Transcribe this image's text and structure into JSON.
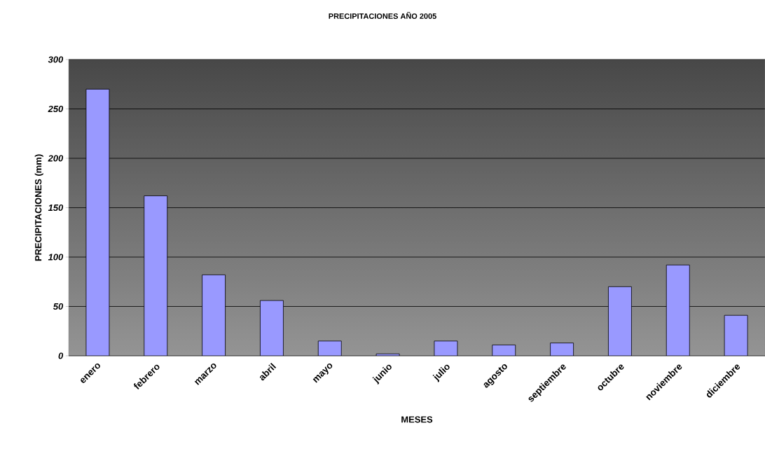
{
  "chart_data": {
    "type": "bar",
    "title": "PRECIPITACIONES AÑO 2005",
    "xlabel": "MESES",
    "ylabel": "PRECIPITACIONES (mm)",
    "categories": [
      "enero",
      "febrero",
      "marzo",
      "abril",
      "mayo",
      "junio",
      "julio",
      "agosto",
      "septiembre",
      "octubre",
      "noviembre",
      "diciembre"
    ],
    "values": [
      270,
      162,
      82,
      56,
      15,
      2,
      15,
      11,
      13,
      70,
      92,
      41
    ],
    "color": "#9999ff",
    "ylim": [
      0,
      300
    ],
    "yticks": [
      0,
      50,
      100,
      150,
      200,
      250,
      300
    ],
    "grid": "y"
  }
}
